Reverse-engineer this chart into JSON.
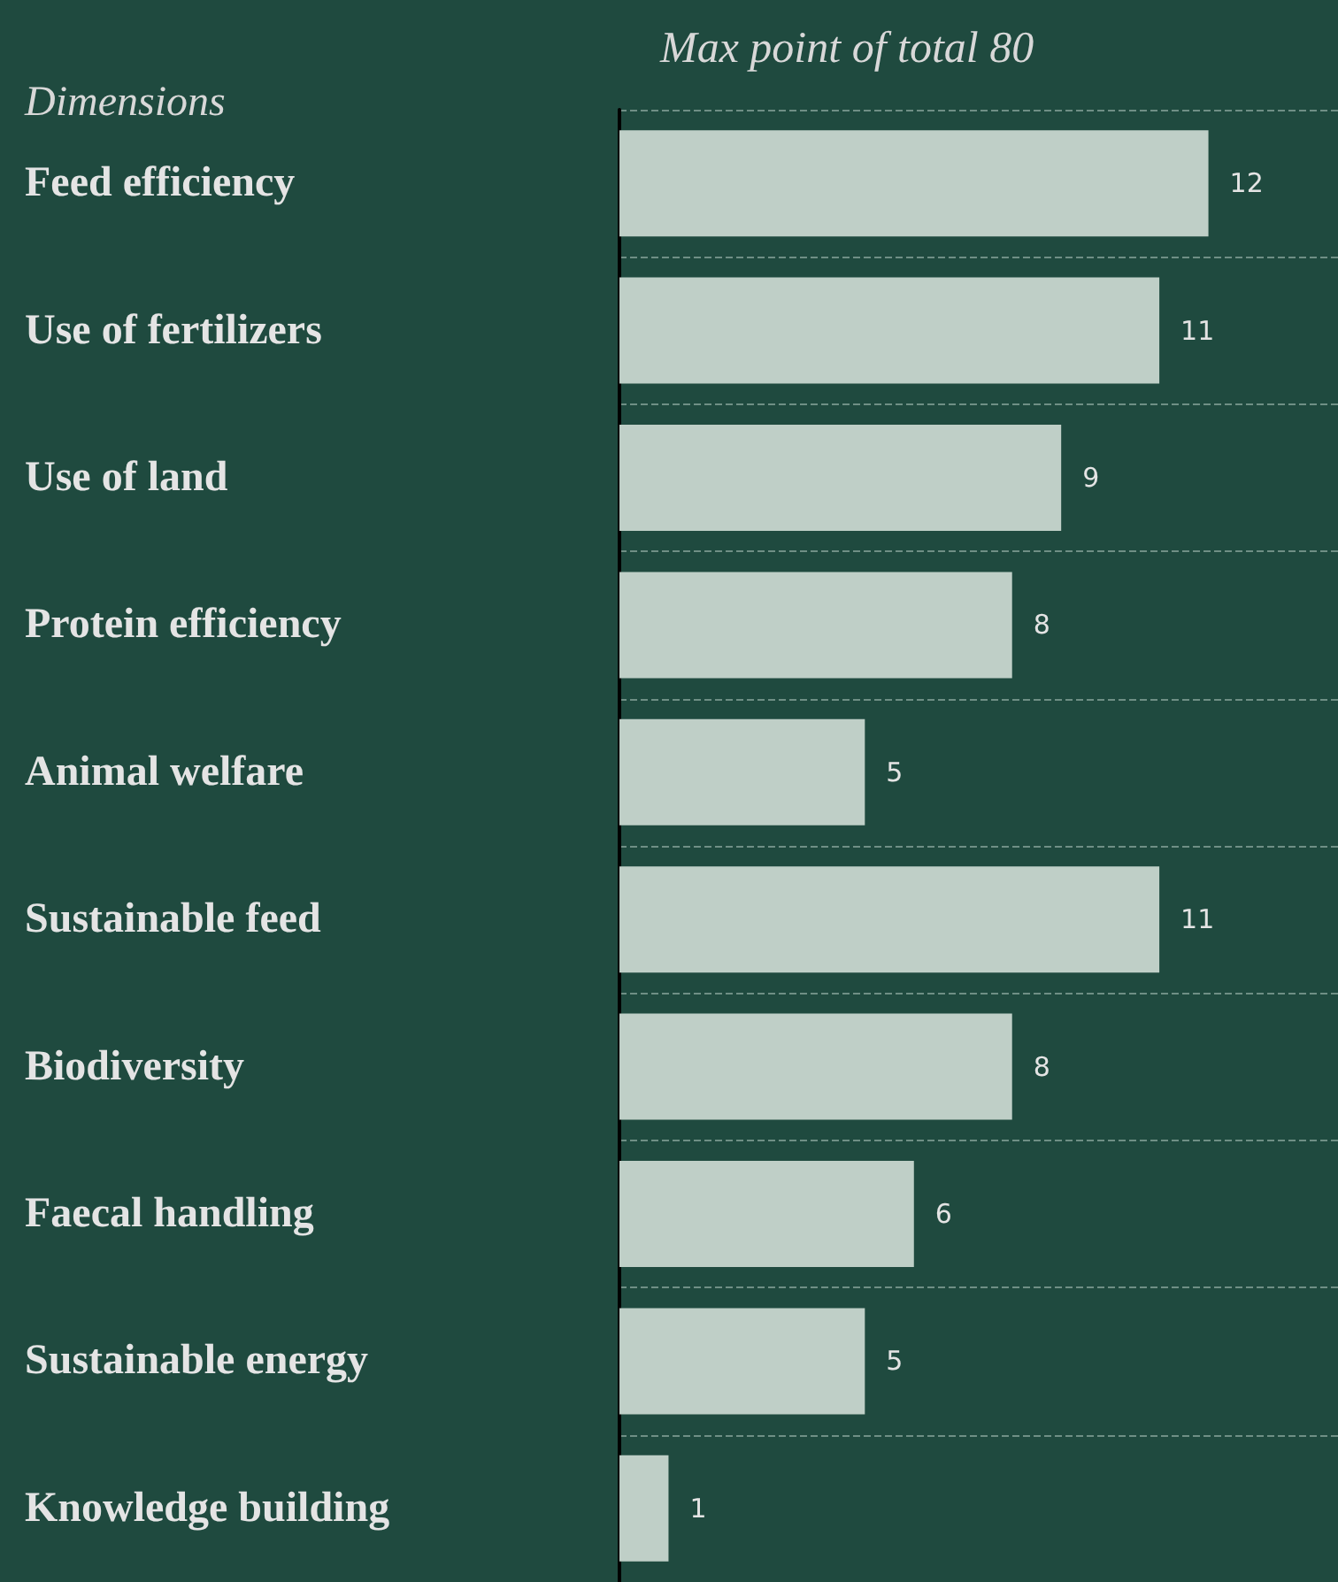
{
  "chart_data": {
    "type": "bar",
    "orientation": "horizontal",
    "title": "Max point of total 80",
    "ylabel": "Dimensions",
    "categories": [
      "Feed efficiency",
      "Use of fertilizers",
      "Use of land",
      "Protein efficiency",
      "Animal welfare",
      "Sustainable feed",
      "Biodiversity",
      "Faecal handling",
      "Sustainable energy",
      "Knowledge building"
    ],
    "values": [
      12,
      11,
      9,
      8,
      5,
      11,
      8,
      6,
      5,
      1
    ],
    "color": "#bfcfc7",
    "data_labels": true,
    "grid": "y"
  }
}
